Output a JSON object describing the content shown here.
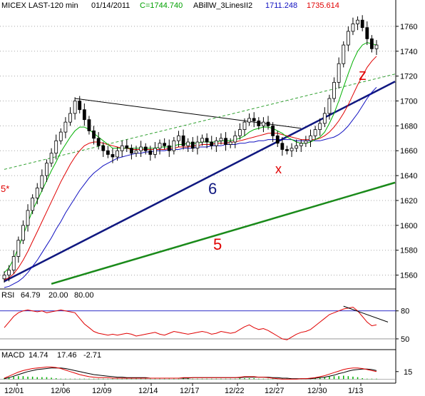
{
  "header": {
    "symbol": "MICEX LAST-120 min",
    "date": "01/14/2011",
    "close": "C=1744.740",
    "indicator": "ABillW_3LinesII2",
    "v1": "1711.248",
    "v2": "1735.614"
  },
  "colors": {
    "black": "#000000",
    "green": "#00b000",
    "red": "#e00000",
    "blue": "#1010c0",
    "navy": "#101880",
    "darkgreen": "#1a8a1a",
    "dashgreen": "#30a030",
    "grid": "#a8a8a8"
  },
  "chart_data": [
    {
      "type": "candlestick",
      "title": "",
      "y_ticks": [
        1560,
        1580,
        1600,
        1620,
        1640,
        1660,
        1680,
        1700,
        1720,
        1740,
        1760
      ],
      "ylim": [
        1550,
        1772
      ],
      "x_ticks": [
        "12/01",
        "12/06",
        "12/09",
        "12/14",
        "12/17",
        "12/22",
        "12/27",
        "12/30",
        "1/13"
      ],
      "close_series": [
        1560,
        1564,
        1575,
        1588,
        1600,
        1612,
        1622,
        1630,
        1640,
        1650,
        1658,
        1668,
        1675,
        1683,
        1690,
        1700,
        1693,
        1685,
        1676,
        1670,
        1664,
        1660,
        1657,
        1655,
        1660,
        1664,
        1662,
        1658,
        1660,
        1663,
        1660,
        1657,
        1662,
        1666,
        1664,
        1660,
        1668,
        1672,
        1664,
        1667,
        1662,
        1667,
        1670,
        1667,
        1664,
        1668,
        1670,
        1665,
        1667,
        1672,
        1677,
        1683,
        1686,
        1684,
        1680,
        1683,
        1680,
        1672,
        1666,
        1661,
        1660,
        1662,
        1664,
        1666,
        1668,
        1672,
        1677,
        1682,
        1690,
        1702,
        1715,
        1730,
        1745,
        1756,
        1762,
        1765,
        1759,
        1750,
        1742,
        1745
      ],
      "ma_green": [
        1562,
        1566,
        1573,
        1582,
        1592,
        1602,
        1612,
        1620,
        1628,
        1636,
        1644,
        1651,
        1659,
        1665,
        1671,
        1676,
        1679,
        1679,
        1677,
        1674,
        1671,
        1668,
        1665,
        1662,
        1662,
        1662,
        1662,
        1662,
        1662,
        1662,
        1662,
        1662,
        1662,
        1663,
        1663,
        1663,
        1664,
        1665,
        1665,
        1666,
        1666,
        1666,
        1667,
        1667,
        1667,
        1667,
        1668,
        1668,
        1668,
        1669,
        1670,
        1672,
        1675,
        1677,
        1678,
        1679,
        1679,
        1678,
        1676,
        1674,
        1671,
        1669,
        1667,
        1666,
        1666,
        1667,
        1669,
        1671,
        1675,
        1682,
        1690,
        1700,
        1711,
        1722,
        1732,
        1740,
        1745,
        1747,
        1746,
        1745
      ],
      "ma_red": [
        1556,
        1558,
        1561,
        1566,
        1572,
        1579,
        1587,
        1595,
        1603,
        1611,
        1619,
        1627,
        1635,
        1642,
        1649,
        1655,
        1660,
        1664,
        1666,
        1667,
        1667,
        1666,
        1665,
        1664,
        1663,
        1662,
        1662,
        1661,
        1661,
        1661,
        1661,
        1661,
        1661,
        1661,
        1661,
        1662,
        1662,
        1663,
        1663,
        1663,
        1664,
        1664,
        1665,
        1665,
        1665,
        1666,
        1666,
        1666,
        1667,
        1667,
        1668,
        1669,
        1670,
        1671,
        1672,
        1673,
        1674,
        1674,
        1674,
        1673,
        1672,
        1671,
        1670,
        1669,
        1669,
        1669,
        1669,
        1670,
        1672,
        1675,
        1679,
        1684,
        1690,
        1697,
        1705,
        1713,
        1720,
        1727,
        1732,
        1736
      ],
      "ma_blue": [
        1550,
        1551,
        1553,
        1555,
        1558,
        1562,
        1567,
        1572,
        1578,
        1584,
        1590,
        1597,
        1603,
        1610,
        1616,
        1622,
        1628,
        1633,
        1638,
        1642,
        1645,
        1648,
        1650,
        1652,
        1654,
        1655,
        1656,
        1657,
        1658,
        1658,
        1659,
        1659,
        1660,
        1660,
        1660,
        1661,
        1661,
        1661,
        1662,
        1662,
        1662,
        1663,
        1663,
        1663,
        1664,
        1664,
        1664,
        1665,
        1665,
        1665,
        1666,
        1666,
        1667,
        1667,
        1668,
        1668,
        1669,
        1669,
        1669,
        1669,
        1669,
        1669,
        1668,
        1668,
        1668,
        1668,
        1668,
        1668,
        1669,
        1670,
        1671,
        1673,
        1676,
        1680,
        1685,
        1690,
        1696,
        1702,
        1707,
        1711
      ],
      "annotations": [
        {
          "text": "6",
          "color": "#101880"
        },
        {
          "text": "5",
          "color": "#e00000"
        },
        {
          "text": "5*",
          "color": "#e00000"
        },
        {
          "text": "x",
          "color": "#e00000"
        },
        {
          "text": "z",
          "color": "#e00000"
        }
      ],
      "trendlines": [
        {
          "name": "line-6",
          "points": [
            [
              0,
              1555
            ],
            [
              79,
              1708
            ]
          ],
          "color": "#101880"
        },
        {
          "name": "line-5",
          "points": [
            [
              10,
              1553
            ],
            [
              79,
              1630
            ]
          ],
          "color": "#1a8a1a"
        },
        {
          "name": "resistance",
          "points": [
            [
              15,
              1702
            ],
            [
              63,
              1678
            ]
          ],
          "color": "#000000"
        },
        {
          "name": "dashed-channel",
          "points": [
            [
              0,
              1645
            ],
            [
              79,
              1718
            ]
          ],
          "color": "#30a030"
        }
      ]
    },
    {
      "type": "line",
      "title": "RSI",
      "legend": [
        "RSI",
        "64.79",
        "20.00",
        "80.00"
      ],
      "y_ticks": [
        50,
        80
      ],
      "ylim": [
        40,
        92
      ],
      "values": [
        62,
        68,
        74,
        78,
        80,
        81,
        80,
        79,
        80,
        78,
        79,
        80,
        81,
        80,
        79,
        78,
        72,
        66,
        62,
        58,
        56,
        55,
        54,
        55,
        54,
        55,
        56,
        55,
        53,
        54,
        55,
        56,
        57,
        55,
        54,
        56,
        58,
        57,
        56,
        55,
        56,
        57,
        58,
        57,
        55,
        56,
        58,
        57,
        56,
        57,
        60,
        63,
        65,
        62,
        60,
        61,
        59,
        56,
        53,
        50,
        49,
        52,
        55,
        57,
        58,
        60,
        64,
        68,
        72,
        76,
        78,
        80,
        82,
        83,
        84,
        80,
        74,
        68,
        64,
        65
      ],
      "trend": {
        "points": [
          [
            72,
            85
          ],
          [
            79,
            72
          ]
        ],
        "color": "#000000"
      }
    },
    {
      "type": "line",
      "title": "MACD",
      "legend": [
        "MACD",
        "14.74",
        "17.46",
        "-2.71"
      ],
      "y_ticks": [
        15
      ],
      "ylim": [
        -5,
        40
      ],
      "macd": [
        2,
        6,
        10,
        14,
        17,
        19,
        21,
        22,
        23,
        24,
        24,
        23,
        21,
        18,
        15,
        12,
        9,
        7,
        5,
        4,
        3,
        3,
        3,
        2,
        2,
        2,
        2,
        2,
        2,
        2,
        2,
        2,
        2,
        2,
        2,
        2,
        2,
        2,
        3,
        3,
        3,
        3,
        3,
        3,
        3,
        3,
        3,
        3,
        3,
        3,
        4,
        5,
        5,
        5,
        4,
        4,
        3,
        2,
        1,
        0,
        0,
        0,
        0,
        1,
        1,
        2,
        3,
        5,
        7,
        10,
        13,
        16,
        19,
        21,
        22,
        22,
        21,
        19,
        17,
        15
      ],
      "signal": [
        1,
        3,
        6,
        9,
        12,
        15,
        17,
        19,
        20,
        21,
        22,
        22,
        22,
        21,
        19,
        17,
        15,
        13,
        11,
        9,
        8,
        7,
        6,
        5,
        4,
        4,
        3,
        3,
        3,
        3,
        3,
        2,
        2,
        2,
        2,
        2,
        2,
        2,
        2,
        2,
        3,
        3,
        3,
        3,
        3,
        3,
        3,
        3,
        3,
        3,
        3,
        4,
        4,
        4,
        4,
        4,
        4,
        3,
        3,
        2,
        2,
        1,
        1,
        1,
        1,
        1,
        2,
        3,
        4,
        6,
        8,
        11,
        13,
        16,
        18,
        19,
        20,
        20,
        19,
        17
      ]
    }
  ]
}
